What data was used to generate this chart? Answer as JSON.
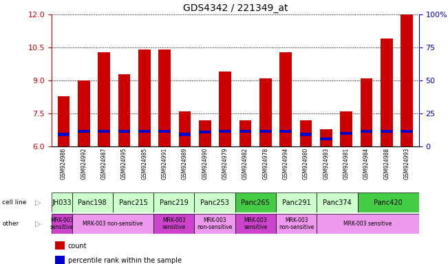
{
  "title": "GDS4342 / 221349_at",
  "samples": [
    "GSM924986",
    "GSM924992",
    "GSM924987",
    "GSM924995",
    "GSM924985",
    "GSM924991",
    "GSM924989",
    "GSM924990",
    "GSM924979",
    "GSM924982",
    "GSM924978",
    "GSM924994",
    "GSM924980",
    "GSM924983",
    "GSM924981",
    "GSM924984",
    "GSM924988",
    "GSM924993"
  ],
  "count_values": [
    8.3,
    9.0,
    10.3,
    9.3,
    10.4,
    10.4,
    7.6,
    7.2,
    9.4,
    7.2,
    9.1,
    10.3,
    7.2,
    6.8,
    7.6,
    9.1,
    10.9,
    12.0
  ],
  "percentile_values": [
    6.55,
    6.7,
    6.7,
    6.7,
    6.7,
    6.7,
    6.55,
    6.65,
    6.7,
    6.7,
    6.7,
    6.7,
    6.55,
    6.35,
    6.6,
    6.7,
    6.7,
    6.7
  ],
  "ylim_left": [
    6,
    12
  ],
  "ylim_right": [
    0,
    100
  ],
  "yticks_left": [
    6,
    7.5,
    9,
    10.5,
    12
  ],
  "yticks_right": [
    0,
    25,
    50,
    75,
    100
  ],
  "bar_color": "#cc0000",
  "percentile_color": "#0000cc",
  "cell_lines": [
    {
      "label": "JH033",
      "start": 0,
      "end": 1,
      "color": "#ccffcc"
    },
    {
      "label": "Panc198",
      "start": 1,
      "end": 3,
      "color": "#ccffcc"
    },
    {
      "label": "Panc215",
      "start": 3,
      "end": 5,
      "color": "#ccffcc"
    },
    {
      "label": "Panc219",
      "start": 5,
      "end": 7,
      "color": "#ccffcc"
    },
    {
      "label": "Panc253",
      "start": 7,
      "end": 9,
      "color": "#ccffcc"
    },
    {
      "label": "Panc265",
      "start": 9,
      "end": 11,
      "color": "#44cc44"
    },
    {
      "label": "Panc291",
      "start": 11,
      "end": 13,
      "color": "#ccffcc"
    },
    {
      "label": "Panc374",
      "start": 13,
      "end": 15,
      "color": "#ccffcc"
    },
    {
      "label": "Panc420",
      "start": 15,
      "end": 18,
      "color": "#44cc44"
    }
  ],
  "other_annotations": [
    {
      "label": "MRK-003\nsensitive",
      "start": 0,
      "end": 1,
      "color": "#cc44cc"
    },
    {
      "label": "MRK-003 non-sensitive",
      "start": 1,
      "end": 5,
      "color": "#ee99ee"
    },
    {
      "label": "MRK-003\nsensitive",
      "start": 5,
      "end": 7,
      "color": "#cc44cc"
    },
    {
      "label": "MRK-003\nnon-sensitive",
      "start": 7,
      "end": 9,
      "color": "#ee99ee"
    },
    {
      "label": "MRK-003\nsensitive",
      "start": 9,
      "end": 11,
      "color": "#cc44cc"
    },
    {
      "label": "MRK-003\nnon-sensitive",
      "start": 11,
      "end": 13,
      "color": "#ee99ee"
    },
    {
      "label": "MRK-003 sensitive",
      "start": 13,
      "end": 18,
      "color": "#ee99ee"
    }
  ],
  "legend_items": [
    {
      "label": "count",
      "color": "#cc0000"
    },
    {
      "label": "percentile rank within the sample",
      "color": "#0000cc"
    }
  ],
  "background_color": "#ffffff",
  "tick_bg_color": "#cccccc"
}
